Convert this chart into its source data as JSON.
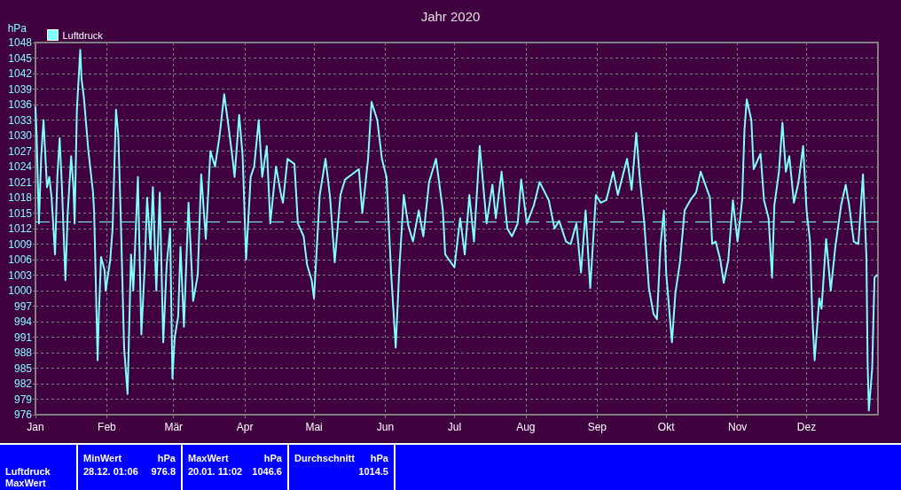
{
  "chart_data": {
    "type": "line",
    "title": "Jahr 2020",
    "ylabel": "hPa",
    "x": [
      "2020-01-01",
      "2020-01-01T12:00",
      "2020-01-02T12:00",
      "2020-01-03T12:00",
      "2020-01-04T12:00",
      "2020-01-06",
      "2020-01-07",
      "2020-01-08",
      "2020-01-09T12:00",
      "2020-01-10T12:00",
      "2020-01-11T12:00",
      "2020-01-12T12:00",
      "2020-01-14",
      "2020-01-15",
      "2020-01-16T12:00",
      "2020-01-17T12:00",
      "2020-01-18",
      "2020-01-19",
      "2020-01-20T11:02",
      "2020-01-21",
      "2020-01-22",
      "2020-01-24",
      "2020-01-26",
      "2020-01-26T12:00",
      "2020-01-28",
      "2020-01-28T12:00",
      "2020-01-29T12:00",
      "2020-01-31",
      "2020-01-31T12:00",
      "2020-02-02T12:00",
      "2020-02-03T12:00",
      "2020-02-05",
      "2020-02-06",
      "2020-02-07",
      "2020-02-08T12:00",
      "2020-02-10",
      "2020-02-11T12:00",
      "2020-02-12T12:00",
      "2020-02-14T12:00",
      "2020-02-16",
      "2020-02-17T12:00",
      "2020-02-18T12:00",
      "2020-02-20",
      "2020-02-21",
      "2020-02-22T12:00",
      "2020-02-24",
      "2020-02-25T12:00",
      "2020-02-27",
      "2020-02-28T12:00",
      "2020-02-29T12:00",
      "2020-03-01T12:00",
      "2020-03-03",
      "2020-03-04",
      "2020-03-05T12:00",
      "2020-03-07T12:00",
      "2020-03-09T12:00",
      "2020-03-11T12:00",
      "2020-03-13",
      "2020-03-15",
      "2020-03-17",
      "2020-03-19",
      "2020-03-21",
      "2020-03-23",
      "2020-03-24T12:00",
      "2020-03-26T12:00",
      "2020-03-27T12:00",
      "2020-03-29T12:00",
      "2020-03-31",
      "2020-04-01T12:00",
      "2020-04-03T12:00",
      "2020-04-05",
      "2020-04-07",
      "2020-04-08T12:00",
      "2020-04-10T12:00",
      "2020-04-12",
      "2020-04-14T12:00",
      "2020-04-16T12:00",
      "2020-04-17T12:00",
      "2020-04-19T12:00",
      "2020-04-22T12:00",
      "2020-04-24",
      "2020-04-26T12:00",
      "2020-04-28",
      "2020-04-30",
      "2020-05-01",
      "2020-05-03T12:00",
      "2020-05-06",
      "2020-05-08",
      "2020-05-10",
      "2020-05-12T12:00",
      "2020-05-14T12:00",
      "2020-05-17T12:00",
      "2020-05-20T12:00",
      "2020-05-22",
      "2020-05-24T12:00",
      "2020-05-26",
      "2020-05-28T12:00",
      "2020-05-30T12:00",
      "2020-06-01T12:00",
      "2020-06-03T12:00",
      "2020-06-05T12:00",
      "2020-06-07",
      "2020-06-09",
      "2020-06-11",
      "2020-06-13",
      "2020-06-15T12:00",
      "2020-06-17T12:00",
      "2020-06-20",
      "2020-06-23",
      "2020-06-26",
      "2020-06-27",
      "2020-07-01",
      "2020-07-03T12:00",
      "2020-07-05T12:00",
      "2020-07-07T12:00",
      "2020-07-09T12:00",
      "2020-07-12",
      "2020-07-15",
      "2020-07-17T12:00",
      "2020-07-19",
      "2020-07-21T12:00",
      "2020-07-24",
      "2020-07-26",
      "2020-07-28T12:00",
      "2020-07-30",
      "2020-08-01T12:00",
      "2020-08-04T12:00",
      "2020-08-07",
      "2020-08-11",
      "2020-08-13T12:00",
      "2020-08-15T12:00",
      "2020-08-18T12:00",
      "2020-08-20T12:00",
      "2020-08-23",
      "2020-08-25",
      "2020-08-27",
      "2020-08-29",
      "2020-08-31T12:00",
      "2020-09-02T12:00",
      "2020-09-05",
      "2020-09-08",
      "2020-09-10",
      "2020-09-14",
      "2020-09-16",
      "2020-09-18",
      "2020-09-19T12:00",
      "2020-09-21T12:00",
      "2020-09-23T12:00",
      "2020-09-25T12:00",
      "2020-09-27",
      "2020-09-28T12:00",
      "2020-09-30",
      "2020-10-01",
      "2020-10-03T12:00",
      "2020-10-05",
      "2020-10-07",
      "2020-10-09",
      "2020-10-11T12:00",
      "2020-10-14",
      "2020-10-16",
      "2020-10-18",
      "2020-10-20",
      "2020-10-21",
      "2020-10-22T12:00",
      "2020-10-24T12:00",
      "2020-10-26",
      "2020-10-28",
      "2020-10-30",
      "2020-11-01",
      "2020-11-03",
      "2020-11-04",
      "2020-11-05",
      "2020-11-07",
      "2020-11-08",
      "2020-11-10",
      "2020-11-11",
      "2020-11-12T12:00",
      "2020-11-14T12:00",
      "2020-11-16",
      "2020-11-17",
      "2020-11-19",
      "2020-11-20T12:00",
      "2020-11-22",
      "2020-11-23T12:00",
      "2020-11-25T12:00",
      "2020-11-27T12:00",
      "2020-11-29T12:00",
      "2020-12-01",
      "2020-12-02T12:00",
      "2020-12-03T12:00",
      "2020-12-04T12:00",
      "2020-12-06T12:00",
      "2020-12-07T12:00",
      "2020-12-09T12:00",
      "2020-12-11T12:00",
      "2020-12-13T12:00",
      "2020-12-16",
      "2020-12-18",
      "2020-12-19T12:00",
      "2020-12-21T12:00",
      "2020-12-23T12:00",
      "2020-12-25T12:00",
      "2020-12-27",
      "2020-12-27T12:00",
      "2020-12-28T01:06",
      "2020-12-29T12:00",
      "2020-12-30T12:00",
      "2020-12-31T12:00"
    ],
    "series": [
      {
        "name": "Luftdruck",
        "color": "#80ffff",
        "values": [
          1035.5,
          1030,
          1013,
          1026,
          1033,
          1020,
          1022,
          1018,
          1007,
          1022,
          1029.5,
          1020,
          1002,
          1015,
          1026,
          1020,
          1013,
          1035,
          1046.6,
          1041,
          1037.5,
          1027,
          1019,
          1015,
          986.5,
          995,
          1006.5,
          1004,
          1000,
          1006,
          1012,
          1035,
          1030,
          1015,
          989,
          980,
          1007,
          1000,
          1022,
          991.5,
          1005,
          1018,
          1008,
          1020,
          1000,
          1019,
          990,
          1005,
          1012,
          983,
          991,
          995,
          1008.5,
          993,
          1017,
          998,
          1003,
          1022.5,
          1010,
          1027,
          1024,
          1030,
          1038,
          1033,
          1026,
          1022,
          1034,
          1026,
          1006,
          1022,
          1024,
          1033,
          1022,
          1028,
          1013,
          1024,
          1019,
          1017,
          1025.5,
          1024.5,
          1013,
          1010.5,
          1005,
          1002,
          998.5,
          1018.5,
          1025.5,
          1018,
          1005.5,
          1018.5,
          1021.5,
          1022.5,
          1023.5,
          1015,
          1025.5,
          1036.5,
          1033,
          1025.5,
          1022,
          1003.5,
          989,
          1003.5,
          1018.5,
          1012.5,
          1009.5,
          1015.5,
          1010.5,
          1021,
          1025.5,
          1015.5,
          1007,
          1004.5,
          1014,
          1007,
          1018.5,
          1009.5,
          1028,
          1013,
          1020.5,
          1014,
          1023,
          1012,
          1010.5,
          1013,
          1021.5,
          1013,
          1016.5,
          1021,
          1017.5,
          1012,
          1013.5,
          1009.5,
          1009,
          1013,
          1003.5,
          1015.5,
          1000.5,
          1018.5,
          1017,
          1017.5,
          1023,
          1018.5,
          1025.5,
          1019.5,
          1030.5,
          1022,
          1013,
          1000.5,
          995.5,
          994.5,
          1008.5,
          1015.5,
          1003.5,
          990,
          999.5,
          1005.5,
          1015.5,
          1017.5,
          1019,
          1023,
          1020.5,
          1018,
          1009,
          1009.5,
          1006,
          1001.5,
          1006,
          1017.5,
          1009.5,
          1017.5,
          1031,
          1037,
          1033,
          1023.5,
          1025.5,
          1026.5,
          1017.5,
          1014,
          1002.5,
          1016.5,
          1023,
          1032.5,
          1023,
          1026,
          1017,
          1021,
          1028,
          1015.5,
          1009.5,
          995,
          986.5,
          998.5,
          996.5,
          1010,
          1000,
          1008.5,
          1016.5,
          1020.5,
          1016.5,
          1009.5,
          1009,
          1022.5,
          1006.5,
          986.5,
          976.8,
          985,
          1002.5,
          1003
        ]
      }
    ],
    "xlim": [
      "2020-01-01",
      "2021-01-01"
    ],
    "xticks": [
      {
        "value": "2020-01-01",
        "label": "Jan"
      },
      {
        "value": "2020-02-01",
        "label": "Feb"
      },
      {
        "value": "2020-03-01",
        "label": "Mär"
      },
      {
        "value": "2020-04-01",
        "label": "Apr"
      },
      {
        "value": "2020-05-01",
        "label": "Mai"
      },
      {
        "value": "2020-06-01",
        "label": "Jun"
      },
      {
        "value": "2020-07-01",
        "label": "Jul"
      },
      {
        "value": "2020-08-01",
        "label": "Aug"
      },
      {
        "value": "2020-09-01",
        "label": "Sep"
      },
      {
        "value": "2020-10-01",
        "label": "Okt"
      },
      {
        "value": "2020-11-01",
        "label": "Nov"
      },
      {
        "value": "2020-12-01",
        "label": "Dez"
      }
    ],
    "ylim": [
      976,
      1048
    ],
    "yticks": [
      976,
      979,
      982,
      985,
      988,
      991,
      994,
      997,
      1000,
      1003,
      1006,
      1009,
      1012,
      1015,
      1018,
      1021,
      1024,
      1027,
      1030,
      1033,
      1036,
      1039,
      1042,
      1045,
      1048
    ],
    "ref_lines": [
      {
        "axis": "y",
        "value": 1013.25,
        "color": "#80ffff",
        "line_style": "dashed"
      }
    ],
    "grid": true,
    "legend": "top left",
    "marker": "none",
    "annotations": [
      "Luftdruck",
      "MaxWert",
      "MinWert",
      "hPa",
      "28.12. 01:06",
      "976.8",
      "MaxWert",
      "hPa",
      "20.01. 11:02",
      "1046.6",
      "Durchschnitt",
      "hPa",
      "1014.5"
    ]
  }
}
